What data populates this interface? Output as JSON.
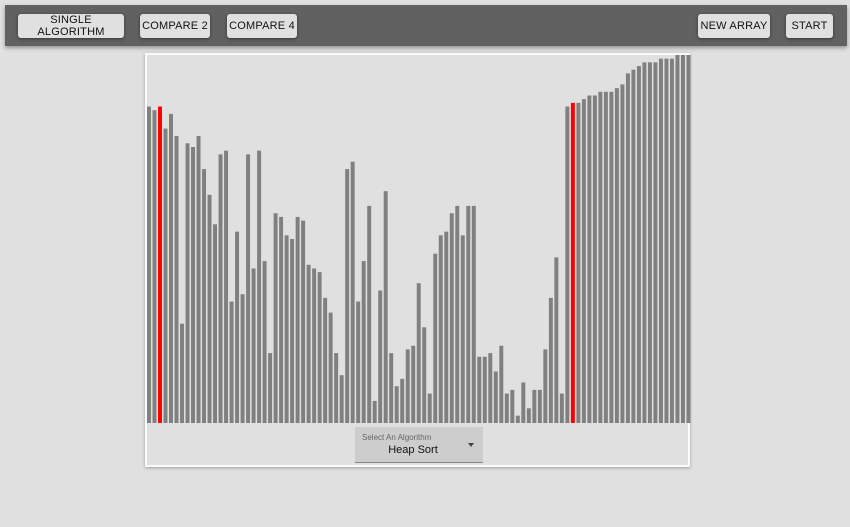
{
  "toolbar": {
    "single_label": "SINGLE ALGORITHM",
    "compare2_label": "COMPARE 2",
    "compare4_label": "COMPARE 4",
    "new_array_label": "NEW ARRAY",
    "start_label": "START"
  },
  "selector": {
    "label": "Select An Algorithm",
    "value": "Heap Sort",
    "caret_icon": "caret-down-icon"
  },
  "colors": {
    "bar": "#808080",
    "highlight": "#ff0000",
    "toolbar": "#616161",
    "background": "#e0e0e0"
  },
  "chart_data": {
    "type": "bar",
    "max_value": 100,
    "highlighted_indices": [
      2,
      77
    ],
    "values": [
      86,
      85,
      86,
      80,
      84,
      78,
      27,
      76,
      75,
      78,
      69,
      62,
      54,
      73,
      74,
      33,
      52,
      35,
      73,
      42,
      74,
      44,
      19,
      57,
      56,
      51,
      50,
      56,
      55,
      43,
      42,
      41,
      34,
      30,
      19,
      13,
      69,
      71,
      33,
      44,
      59,
      6,
      36,
      63,
      19,
      10,
      12,
      20,
      21,
      38,
      26,
      8,
      46,
      51,
      52,
      57,
      59,
      51,
      59,
      59,
      18,
      18,
      19,
      14,
      21,
      8,
      9,
      2,
      11,
      4,
      9,
      9,
      20,
      34,
      45,
      8,
      86,
      87,
      87,
      88,
      89,
      89,
      90,
      90,
      90,
      91,
      92,
      95,
      96,
      97,
      98,
      98,
      98,
      99,
      99,
      99,
      100,
      100,
      100
    ]
  }
}
